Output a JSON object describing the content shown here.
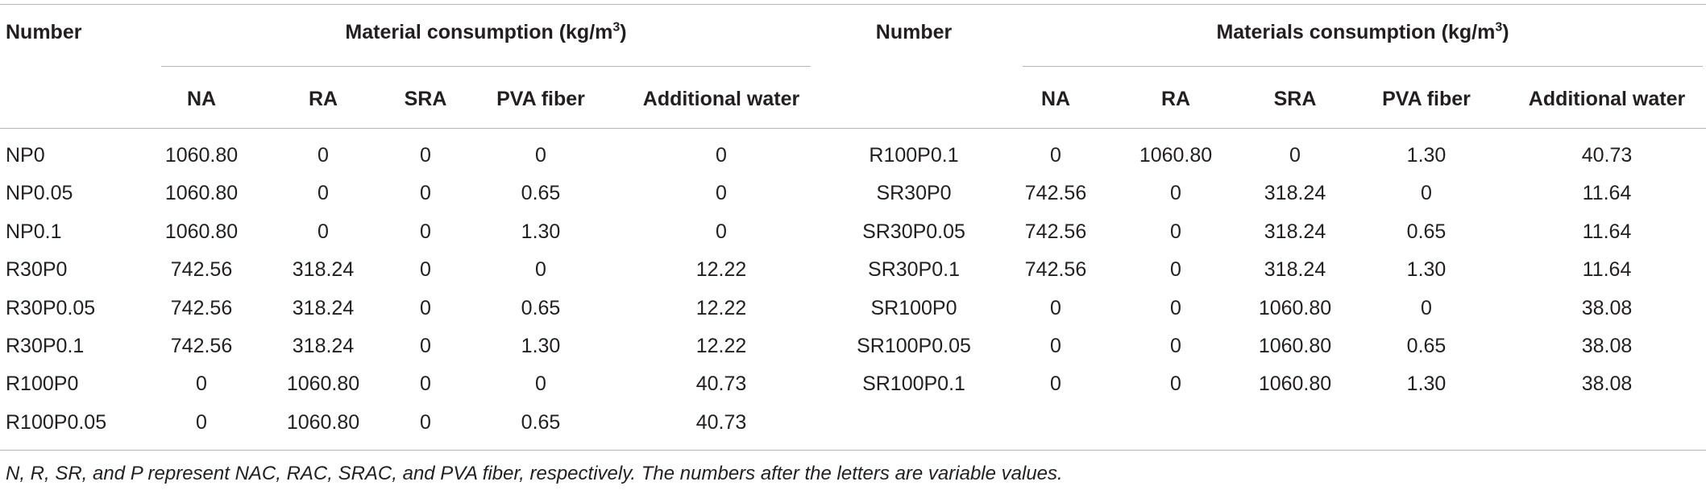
{
  "table": {
    "left": {
      "header": "Number",
      "group": {
        "text": "Material consumption (kg/m",
        "superscript": "3",
        "closing": ")"
      },
      "columns": [
        "NA",
        "RA",
        "SRA",
        "PVA fiber",
        "Additional water"
      ],
      "rows": [
        [
          "NP0",
          "1060.80",
          "0",
          "0",
          "0",
          "0"
        ],
        [
          "NP0.05",
          "1060.80",
          "0",
          "0",
          "0.65",
          "0"
        ],
        [
          "NP0.1",
          "1060.80",
          "0",
          "0",
          "1.30",
          "0"
        ],
        [
          "R30P0",
          "742.56",
          "318.24",
          "0",
          "0",
          "12.22"
        ],
        [
          "R30P0.05",
          "742.56",
          "318.24",
          "0",
          "0.65",
          "12.22"
        ],
        [
          "R30P0.1",
          "742.56",
          "318.24",
          "0",
          "1.30",
          "12.22"
        ],
        [
          "R100P0",
          "0",
          "1060.80",
          "0",
          "0",
          "40.73"
        ],
        [
          "R100P0.05",
          "0",
          "1060.80",
          "0",
          "0.65",
          "40.73"
        ]
      ]
    },
    "right": {
      "header": "Number",
      "group": {
        "text": "Materials consumption (kg/m",
        "superscript": "3",
        "closing": ")"
      },
      "columns": [
        "NA",
        "RA",
        "SRA",
        "PVA fiber",
        "Additional water"
      ],
      "rows": [
        [
          "R100P0.1",
          "0",
          "1060.80",
          "0",
          "1.30",
          "40.73"
        ],
        [
          "SR30P0",
          "742.56",
          "0",
          "318.24",
          "0",
          "11.64"
        ],
        [
          "SR30P0.05",
          "742.56",
          "0",
          "318.24",
          "0.65",
          "11.64"
        ],
        [
          "SR30P0.1",
          "742.56",
          "0",
          "318.24",
          "1.30",
          "11.64"
        ],
        [
          "SR100P0",
          "0",
          "0",
          "1060.80",
          "0",
          "38.08"
        ],
        [
          "SR100P0.05",
          "0",
          "0",
          "1060.80",
          "0.65",
          "38.08"
        ],
        [
          "SR100P0.1",
          "0",
          "0",
          "1060.80",
          "1.30",
          "38.08"
        ]
      ]
    }
  },
  "footnote": "N, R, SR, and P represent NAC, RAC, SRAC, and PVA fiber, respectively. The numbers after the letters are variable values."
}
